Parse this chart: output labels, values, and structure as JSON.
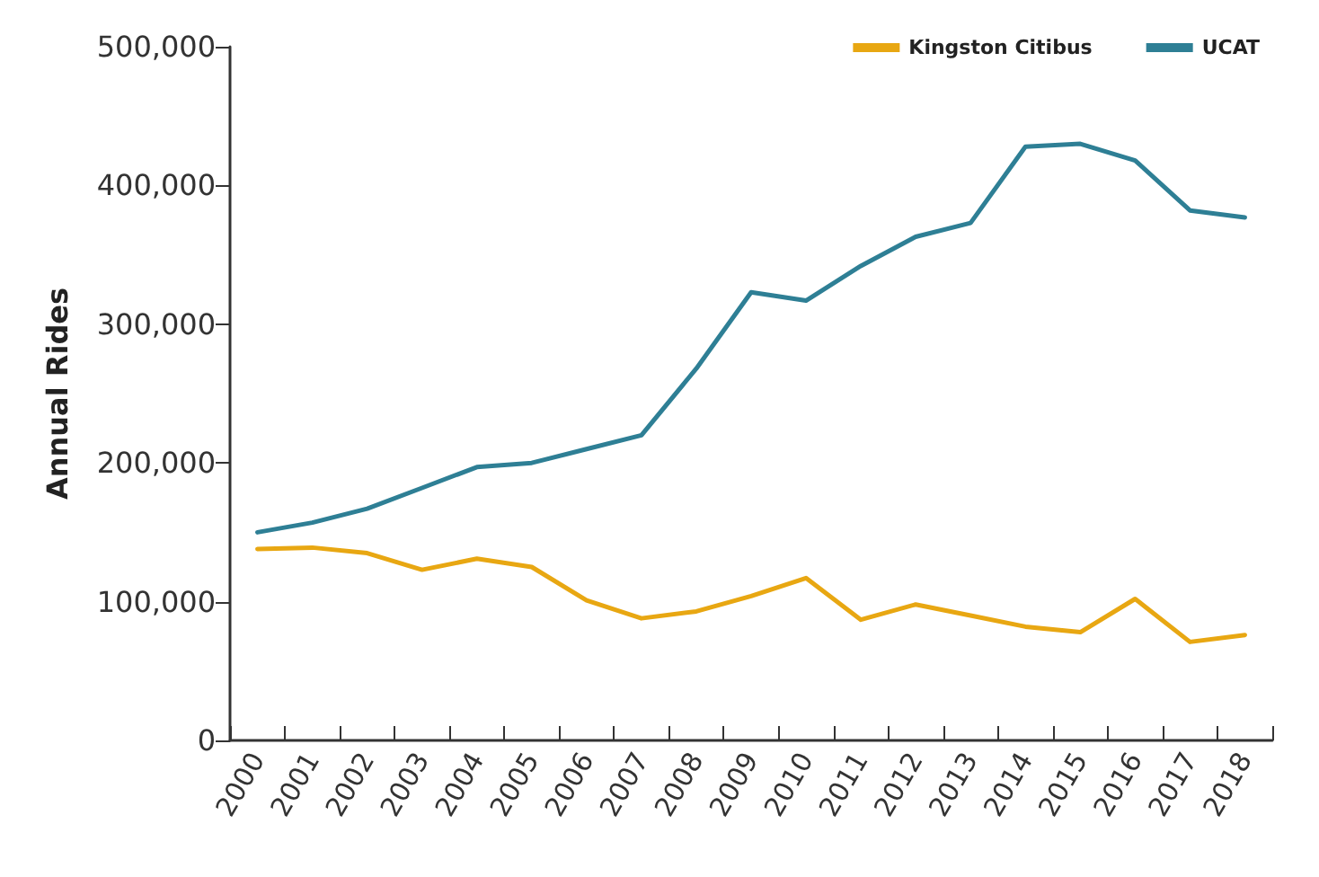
{
  "chart_data": {
    "type": "line",
    "ylabel": "Annual Rides",
    "categories": [
      "2000",
      "2001",
      "2002",
      "2003",
      "2004",
      "2005",
      "2006",
      "2007",
      "2008",
      "2009",
      "2010",
      "2011",
      "2012",
      "2013",
      "2014",
      "2015",
      "2016",
      "2017",
      "2018"
    ],
    "series": [
      {
        "name": "Kingston Citibus",
        "color": "#e8a712",
        "values": [
          138000,
          139000,
          135000,
          123000,
          131000,
          125000,
          101000,
          88000,
          93000,
          104000,
          117000,
          87000,
          98000,
          90000,
          82000,
          78000,
          102000,
          71000,
          76000
        ]
      },
      {
        "name": "UCAT",
        "color": "#2e7f95",
        "values": [
          150000,
          157000,
          167000,
          182000,
          197000,
          200000,
          210000,
          220000,
          268000,
          323000,
          317000,
          342000,
          363000,
          373000,
          428000,
          430000,
          418000,
          382000,
          377000
        ]
      }
    ],
    "ylim": [
      0,
      500000
    ],
    "yticks": [
      0,
      {
        "value": 100000,
        "label": "100,000"
      },
      {
        "value": 200000,
        "label": "200,000"
      },
      {
        "value": 300000,
        "label": "300,000"
      },
      {
        "value": 400000,
        "label": "400,000"
      },
      {
        "value": 500000,
        "label": "500,000"
      }
    ],
    "grid": false,
    "legend": "top right",
    "marker": "none",
    "line_style": "solid"
  }
}
